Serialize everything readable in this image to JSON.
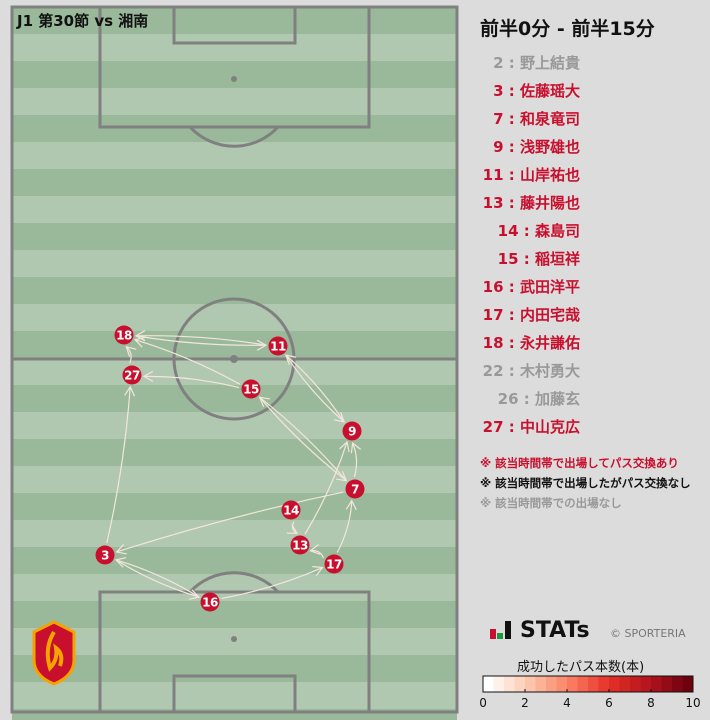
{
  "title": "J1 第30節 vs 湘南",
  "period": "前半0分 - 前半15分",
  "colors": {
    "active": "#c8102e",
    "inactive_black": "#111111",
    "absent": "#999999",
    "pitch_dark": "#99b99a",
    "pitch_light": "#b0c7b0",
    "line": "#808080"
  },
  "players": [
    {
      "num": "2",
      "name": "2 : 野上結貴",
      "status": "absent"
    },
    {
      "num": "3",
      "name": "3 : 佐藤瑶大",
      "status": "active"
    },
    {
      "num": "7",
      "name": "7 : 和泉竜司",
      "status": "active"
    },
    {
      "num": "9",
      "name": "9 : 浅野雄也",
      "status": "active"
    },
    {
      "num": "11",
      "name": "11 : 山岸祐也",
      "status": "active"
    },
    {
      "num": "13",
      "name": "13 : 藤井陽也",
      "status": "active"
    },
    {
      "num": "14",
      "name": "14 : 森島司",
      "status": "active"
    },
    {
      "num": "15",
      "name": "15 : 稲垣祥",
      "status": "active"
    },
    {
      "num": "16",
      "name": "16 : 武田洋平",
      "status": "active"
    },
    {
      "num": "17",
      "name": "17 : 内田宅哉",
      "status": "active"
    },
    {
      "num": "18",
      "name": "18 : 永井謙佑",
      "status": "active"
    },
    {
      "num": "22",
      "name": "22 : 木村勇大",
      "status": "absent"
    },
    {
      "num": "26",
      "name": "26 : 加藤玄",
      "status": "absent"
    },
    {
      "num": "27",
      "name": "27 : 中山克広",
      "status": "active"
    }
  ],
  "pass_links": [
    [
      "3",
      "27"
    ],
    [
      "27",
      "18"
    ],
    [
      "18",
      "11"
    ],
    [
      "11",
      "18"
    ],
    [
      "15",
      "18"
    ],
    [
      "15",
      "27"
    ],
    [
      "11",
      "9"
    ],
    [
      "9",
      "11"
    ],
    [
      "15",
      "7"
    ],
    [
      "7",
      "15"
    ],
    [
      "7",
      "9"
    ],
    [
      "13",
      "9"
    ],
    [
      "17",
      "7"
    ],
    [
      "7",
      "3"
    ],
    [
      "3",
      "16"
    ],
    [
      "16",
      "3"
    ],
    [
      "16",
      "17"
    ],
    [
      "17",
      "13"
    ],
    [
      "14",
      "13"
    ]
  ],
  "notes": [
    {
      "text": "※ 該当時間帯で出場してパス交換あり",
      "color": "#c8102e"
    },
    {
      "text": "※ 該当時間帯で出場したがパス交換なし",
      "color": "#111111"
    },
    {
      "text": "※ 該当時間帯での出場なし",
      "color": "#999999"
    }
  ],
  "brand": "STATs",
  "copyright": "© SPORTERIA",
  "colorbar": {
    "title": "成功したパス本数(本)",
    "ticks": [
      "0",
      "2",
      "4",
      "6",
      "8",
      "10"
    ],
    "range": [
      0,
      10
    ]
  }
}
